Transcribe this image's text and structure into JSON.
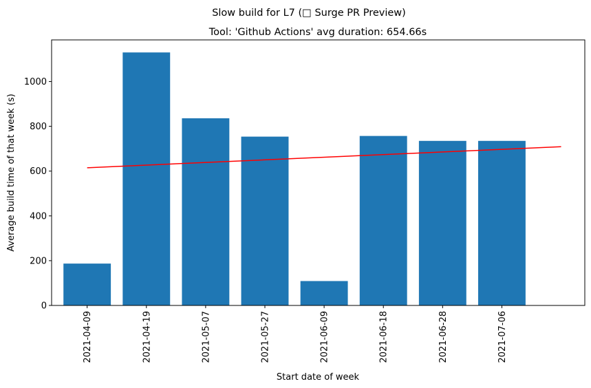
{
  "chart_data": {
    "type": "bar",
    "suptitle": "Slow build for L7 (□ Surge PR Preview)",
    "title": "Tool: 'Github Actions' avg duration: 654.66s",
    "xlabel": "Start date of week",
    "ylabel": "Average build time of that week (s)",
    "categories": [
      "2021-04-09",
      "2021-04-19",
      "2021-05-07",
      "2021-05-27",
      "2021-06-09",
      "2021-06-18",
      "2021-06-28",
      "2021-07-06"
    ],
    "values": [
      187,
      1130,
      836,
      754,
      109,
      757,
      735,
      735
    ],
    "trend_line": {
      "start_index": 0,
      "end_index": 8,
      "start_value": 615,
      "end_value": 709
    },
    "y_ticks": [
      0,
      200,
      400,
      600,
      800,
      1000
    ],
    "ylim": [
      0,
      1186
    ],
    "xlim": [
      -0.6,
      8.4
    ],
    "grid": false,
    "bar_color": "#1f77b4",
    "trend_color": "#ff0000"
  }
}
